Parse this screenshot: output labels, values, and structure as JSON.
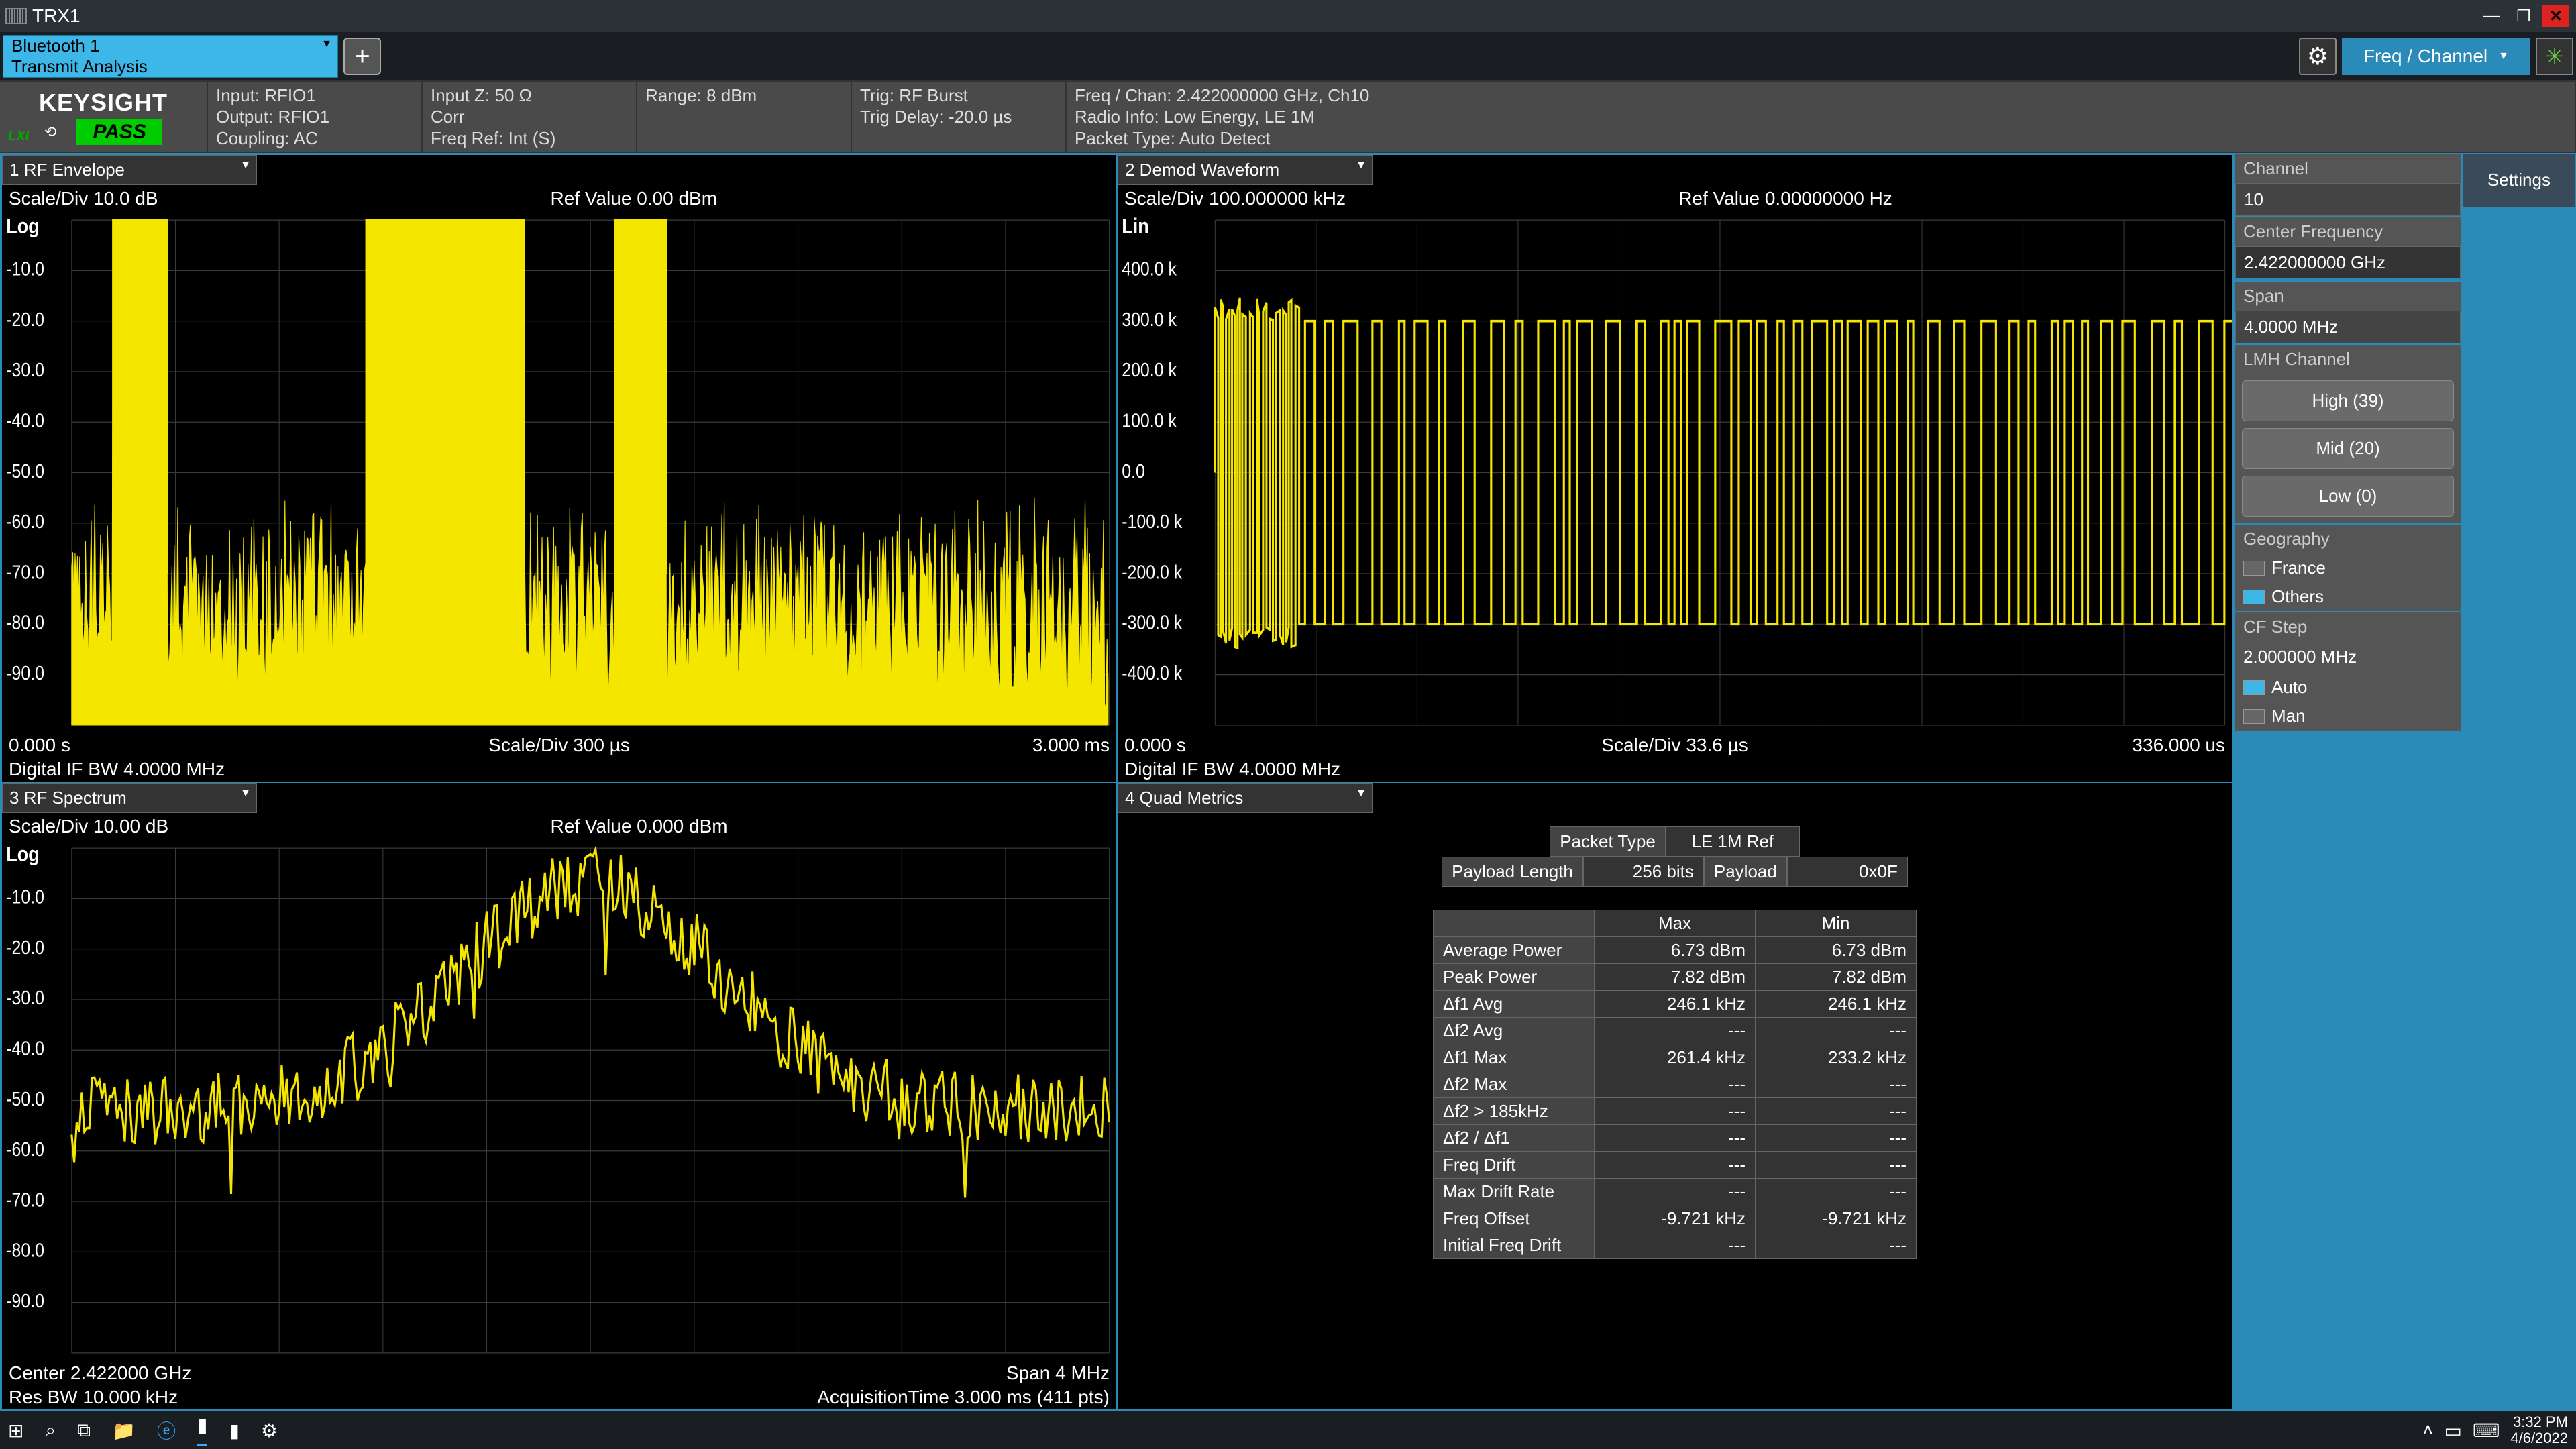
{
  "titlebar": {
    "title": "TRX1"
  },
  "toolbar": {
    "mode_line1": "Bluetooth 1",
    "mode_line2": "Transmit Analysis",
    "freq_chan_label": "Freq / Channel"
  },
  "logo": {
    "keysight": "KEYSIGHT",
    "pass": "PASS",
    "lxi": "LXI"
  },
  "info": {
    "col1": [
      "Input: RFIO1",
      "Output: RFIO1",
      "Coupling: AC"
    ],
    "col2": [
      "Input Z: 50 Ω",
      "Corr",
      "Freq Ref: Int (S)"
    ],
    "col3": [
      "Range: 8 dBm"
    ],
    "col4": [
      "Trig: RF Burst",
      "Trig Delay: -20.0 µs"
    ],
    "col5": [
      "Freq / Chan: 2.422000000 GHz,  Ch10",
      "Radio Info: Low Energy, LE 1M",
      "Packet Type: Auto Detect"
    ]
  },
  "pane1": {
    "title": "1 RF Envelope",
    "scale_div": "Scale/Div 10.0 dB",
    "ref_value": "Ref Value 0.00 dBm",
    "log_label": "Log",
    "y_ticks": [
      "-10.0",
      "-20.0",
      "-30.0",
      "-40.0",
      "-50.0",
      "-60.0",
      "-70.0",
      "-80.0",
      "-90.0"
    ],
    "x_start": "0.000 s",
    "x_scale": "Scale/Div 300 µs",
    "x_end": "3.000 ms",
    "footer": "Digital IF BW 4.0000 MHz",
    "burst_ranges": [
      [
        0.04,
        0.092
      ],
      [
        0.284,
        0.436
      ],
      [
        0.524,
        0.573
      ]
    ],
    "noise_floor": -68,
    "burst_level": 0,
    "grid_color": "#3a3a3a",
    "trace_color": "#f5e600",
    "background": "#000000"
  },
  "pane2": {
    "title": "2 Demod Waveform",
    "scale_div": "Scale/Div 100.000000 kHz",
    "ref_value": "Ref Value 0.00000000 Hz",
    "lin_label": "Lin",
    "y_ticks": [
      "400.0 k",
      "300.0 k",
      "200.0 k",
      "100.0 k",
      "0.0",
      "-100.0 k",
      "-200.0 k",
      "-300.0 k",
      "-400.0 k"
    ],
    "x_start": "0.000 s",
    "x_scale": "Scale/Div 33.6 µs",
    "x_end": "336.000 us",
    "footer": "Digital IF BW 4.0000 MHz",
    "grid_color": "#3a3a3a",
    "trace_color": "#f5e600",
    "background": "#000000"
  },
  "pane3": {
    "title": "3 RF Spectrum",
    "scale_div": "Scale/Div 10.00 dB",
    "ref_value": "Ref Value 0.000 dBm",
    "log_label": "Log",
    "y_ticks": [
      "-10.0",
      "-20.0",
      "-30.0",
      "-40.0",
      "-50.0",
      "-60.0",
      "-70.0",
      "-80.0",
      "-90.0"
    ],
    "center": "Center 2.422000 GHz",
    "span": "Span 4 MHz",
    "resbw": "Res BW 10.000 kHz",
    "acq": "AcquisitionTime 3.000 ms (411 pts)",
    "grid_color": "#3a3a3a",
    "trace_color": "#f5e600",
    "background": "#000000"
  },
  "pane4": {
    "title": "4 Quad Metrics",
    "packet_type_label": "Packet Type",
    "packet_type": "LE 1M Ref",
    "payload_len_label": "Payload Length",
    "payload_len": "256 bits",
    "payload_label": "Payload",
    "payload_val": "0x0F",
    "col_max": "Max",
    "col_min": "Min",
    "rows": [
      {
        "label": "Average Power",
        "max": "6.73 dBm",
        "min": "6.73 dBm"
      },
      {
        "label": "Peak Power",
        "max": "7.82 dBm",
        "min": "7.82 dBm"
      },
      {
        "label": "Δf1 Avg",
        "max": "246.1 kHz",
        "min": "246.1 kHz"
      },
      {
        "label": "Δf2 Avg",
        "max": "---",
        "min": "---"
      },
      {
        "label": "Δf1 Max",
        "max": "261.4 kHz",
        "min": "233.2 kHz"
      },
      {
        "label": "Δf2 Max",
        "max": "---",
        "min": "---"
      },
      {
        "label": "Δf2 > 185kHz",
        "max": "---",
        "min": "---"
      },
      {
        "label": "Δf2 / Δf1",
        "max": "---",
        "min": "---"
      },
      {
        "label": "Freq Drift",
        "max": "---",
        "min": "---"
      },
      {
        "label": "Max Drift Rate",
        "max": "---",
        "min": "---"
      },
      {
        "label": "Freq Offset",
        "max": "-9.721 kHz",
        "min": "-9.721 kHz"
      },
      {
        "label": "Initial Freq Drift",
        "max": "---",
        "min": "---"
      }
    ]
  },
  "sidebar": {
    "channel_label": "Channel",
    "channel_value": "10",
    "cf_label": "Center Frequency",
    "cf_value": "2.422000000 GHz",
    "span_label": "Span",
    "span_value": "4.0000 MHz",
    "lmh_label": "LMH Channel",
    "lmh_high": "High (39)",
    "lmh_mid": "Mid (20)",
    "lmh_low": "Low (0)",
    "geo_label": "Geography",
    "geo_france": "France",
    "geo_others": "Others",
    "cfstep_label": "CF Step",
    "cfstep_value": "2.000000 MHz",
    "cfstep_auto": "Auto",
    "cfstep_man": "Man",
    "settings_tab": "Settings"
  },
  "taskbar": {
    "time": "3:32 PM",
    "date": "4/6/2022"
  }
}
